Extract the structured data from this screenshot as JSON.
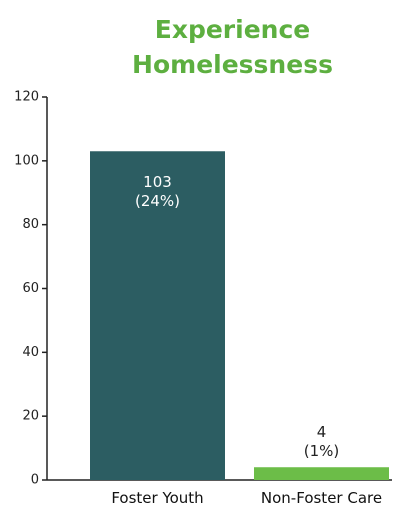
{
  "chart_data": {
    "type": "bar",
    "title": "Experience Homelessness",
    "categories": [
      "Foster Youth",
      "Non-Foster Care"
    ],
    "values": [
      103,
      4
    ],
    "value_labels": [
      "103\n(24%)",
      "4\n(1%)"
    ],
    "colors": [
      "#2c5d62",
      "#6cbd48"
    ],
    "ylim": [
      0,
      120
    ],
    "yticks": [
      0,
      20,
      40,
      60,
      80,
      100,
      120
    ],
    "grid": false
  }
}
